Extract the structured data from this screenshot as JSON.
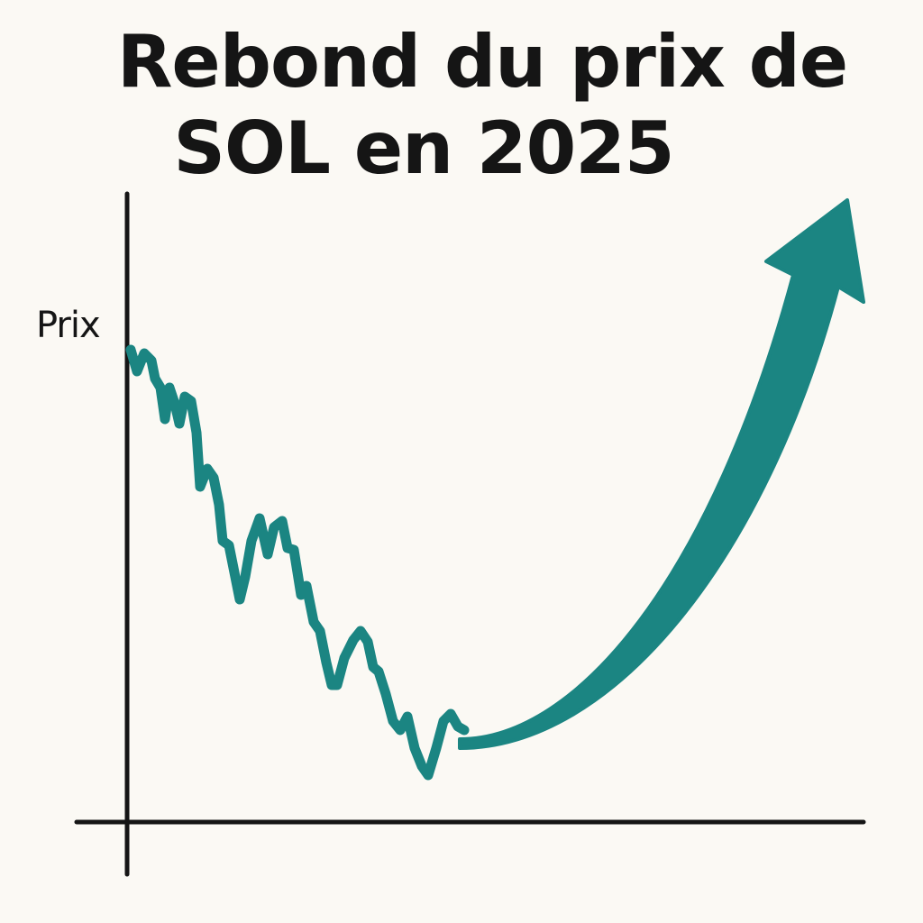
{
  "title_lines": [
    "Rebond du prix de",
    "SOL en 2025"
  ],
  "y_axis_label": "Prix"
}
